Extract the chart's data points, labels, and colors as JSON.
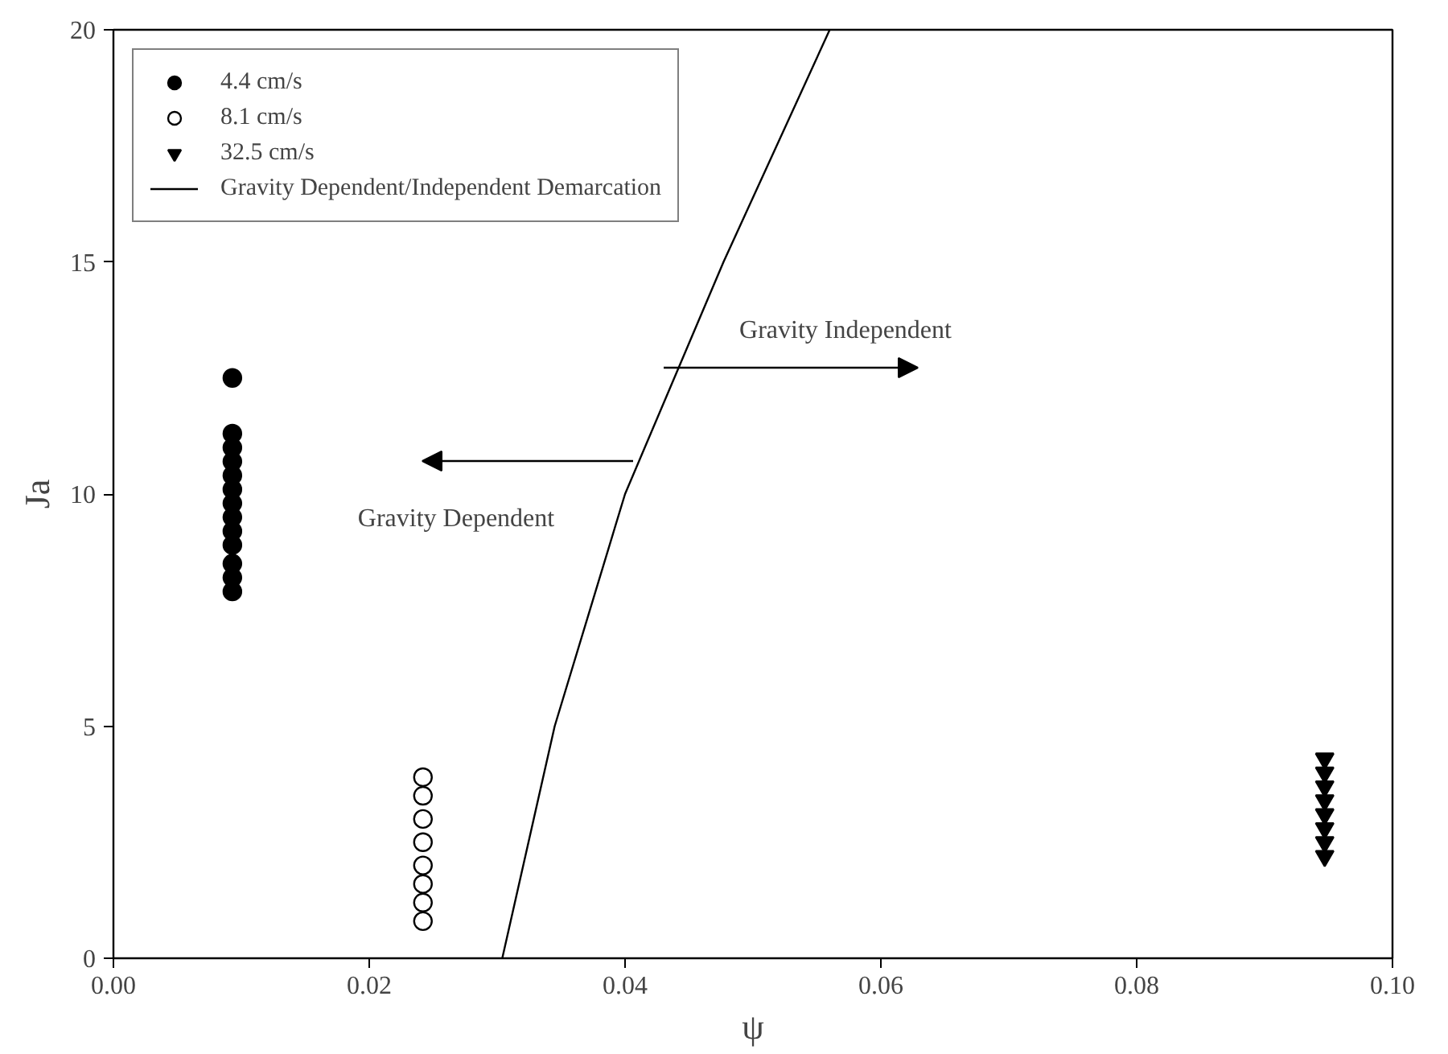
{
  "chart_data": {
    "type": "scatter",
    "xlabel": "ψ",
    "ylabel": "Ja",
    "xlim": [
      0,
      0.1
    ],
    "ylim": [
      0,
      20
    ],
    "xticks": [
      {
        "value": 0,
        "label": "0.00"
      },
      {
        "value": 0.02,
        "label": "0.02"
      },
      {
        "value": 0.04,
        "label": "0.04"
      },
      {
        "value": 0.06,
        "label": "0.06"
      },
      {
        "value": 0.08,
        "label": "0.08"
      },
      {
        "value": 0.1,
        "label": "0.10"
      }
    ],
    "yticks": [
      0,
      5,
      10,
      15,
      20
    ],
    "grid": false,
    "legend": "top left",
    "series": [
      {
        "name": "4.4 cm/s",
        "color": "#000000",
        "marker": "circle",
        "x": [
          0.0093,
          0.0093,
          0.0093,
          0.0093,
          0.0093,
          0.0093,
          0.0093,
          0.0093,
          0.0093,
          0.0093,
          0.0093,
          0.0093,
          0.0093
        ],
        "values": [
          12.5,
          11.3,
          11.0,
          10.7,
          10.4,
          10.1,
          9.8,
          9.5,
          9.2,
          8.9,
          8.5,
          8.2,
          7.9
        ]
      },
      {
        "name": "8.1 cm/s",
        "color": "#000000",
        "marker": "open circle",
        "x": [
          0.0242,
          0.0242,
          0.0242,
          0.0242,
          0.0242,
          0.0242,
          0.0242,
          0.0242
        ],
        "values": [
          3.9,
          3.5,
          3.0,
          2.5,
          2.0,
          1.6,
          1.2,
          0.8
        ]
      },
      {
        "name": "32.5 cm/s",
        "color": "#000000",
        "marker": "triangle",
        "x": [
          0.0947,
          0.0947,
          0.0947,
          0.0947,
          0.0947,
          0.0947,
          0.0947,
          0.0947
        ],
        "values": [
          4.3,
          4.0,
          3.7,
          3.4,
          3.1,
          2.8,
          2.5,
          2.2
        ]
      },
      {
        "name": "Gravity Dependent/Independent Demarcation",
        "type": "line",
        "color": "#000000",
        "line_style": "solid",
        "x": [
          0.0304,
          0.0345,
          0.04,
          0.0477,
          0.056
        ],
        "values": [
          0,
          5,
          10,
          15,
          20
        ]
      }
    ],
    "annotations": [
      "Gravity Independent",
      "Gravity Dependent"
    ]
  }
}
